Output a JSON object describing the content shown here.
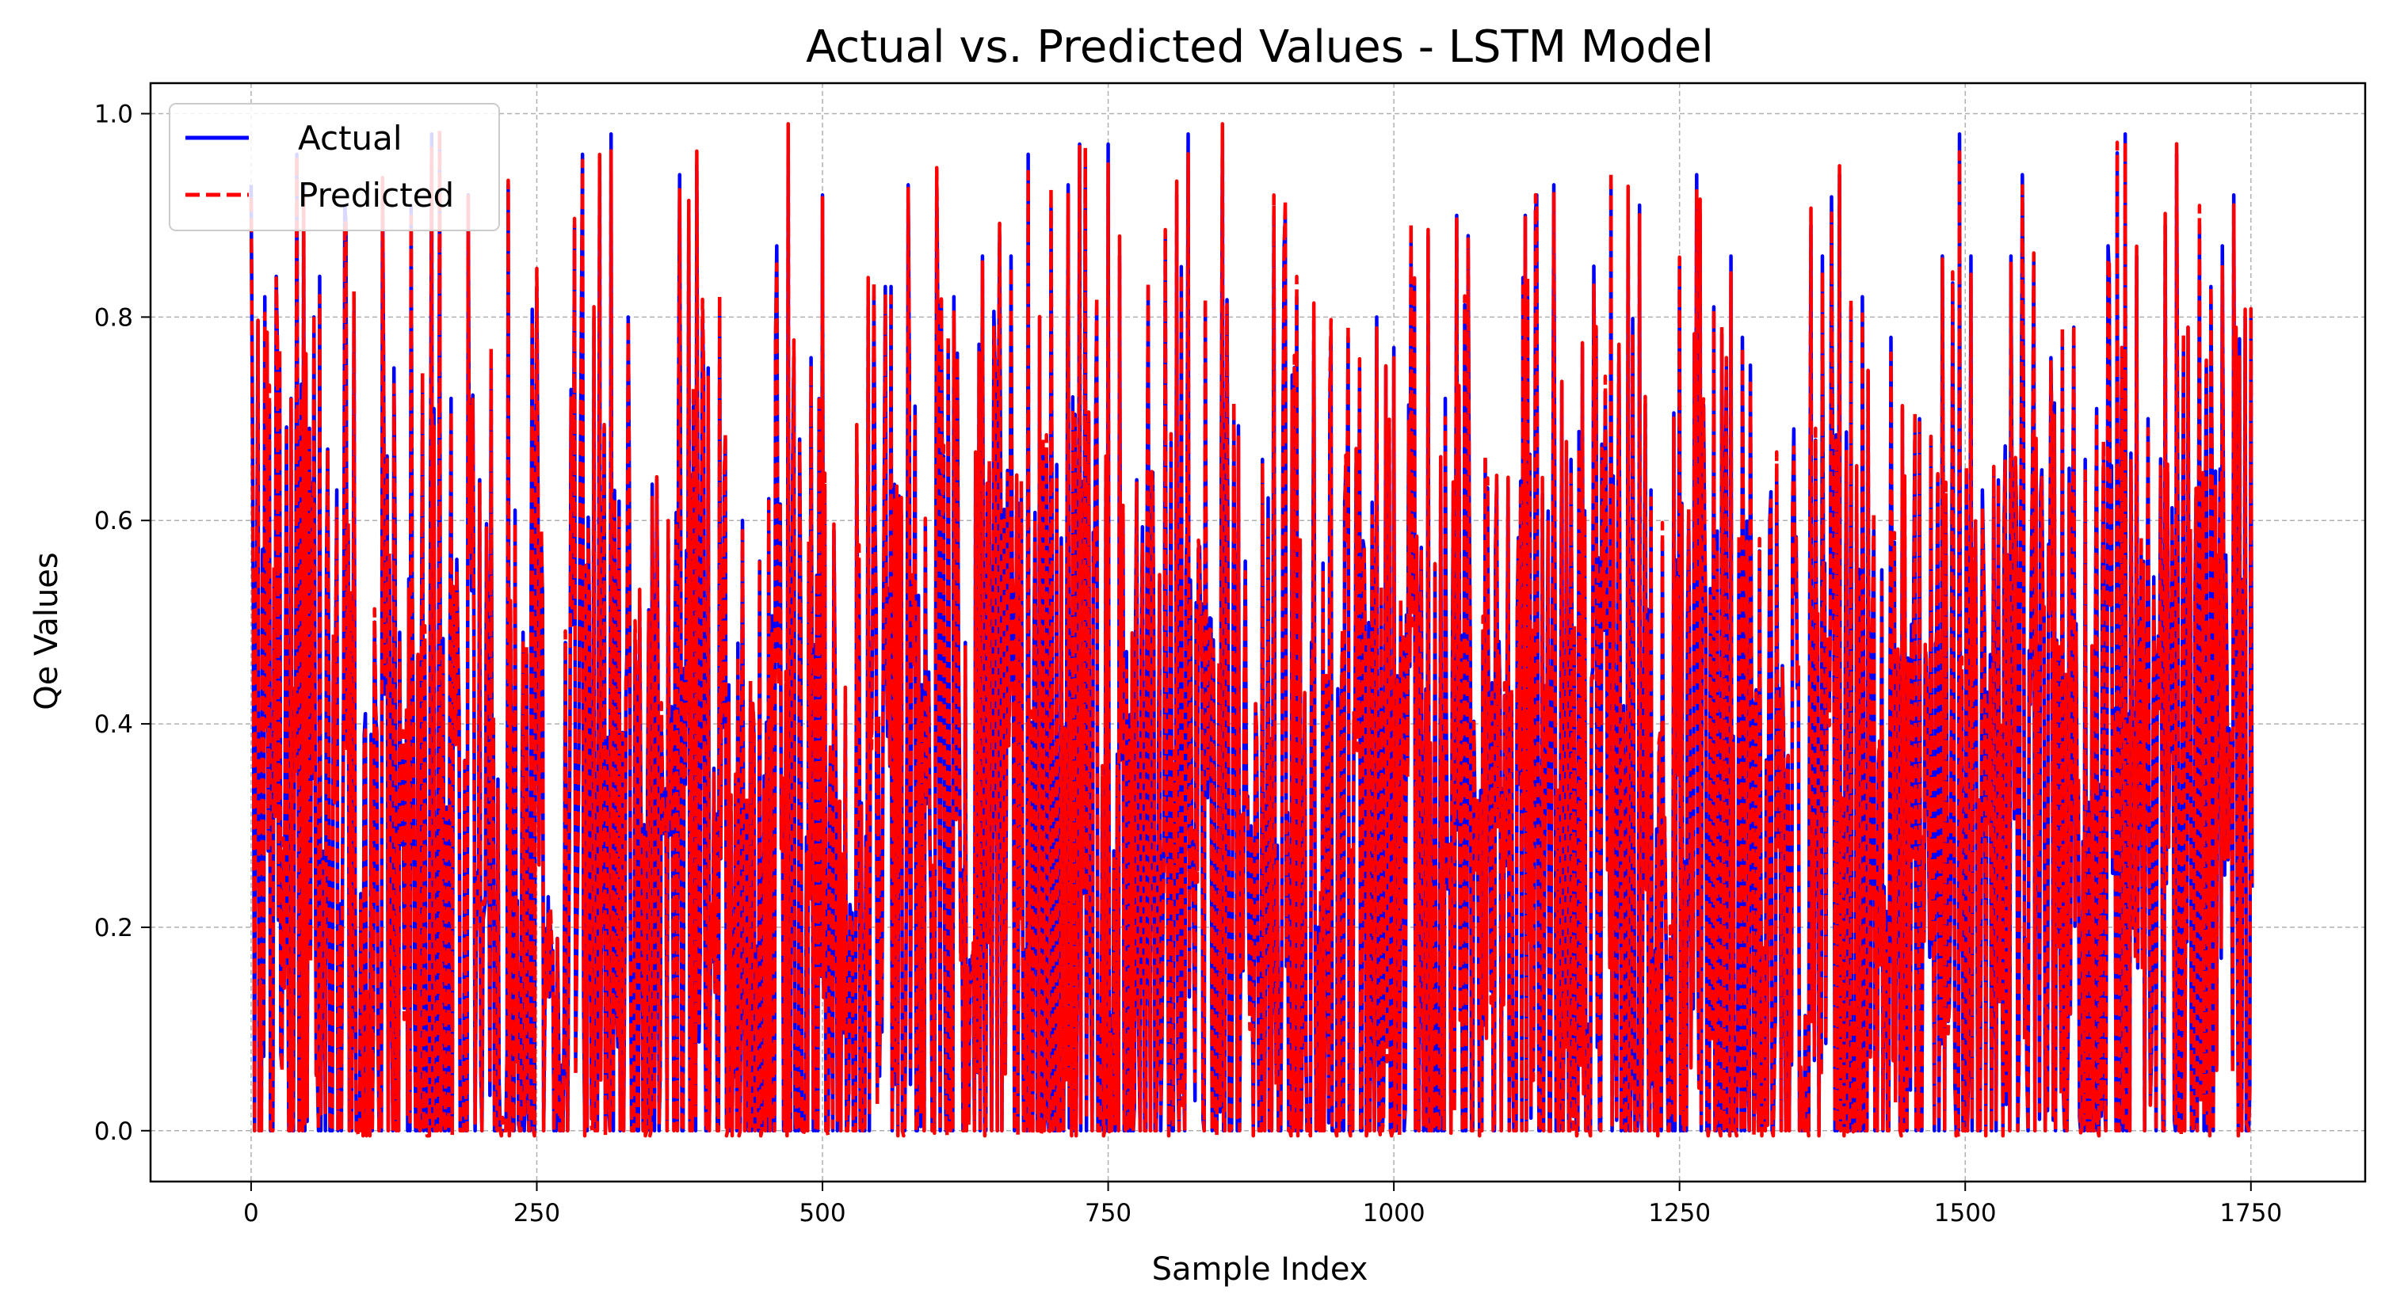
{
  "chart_data": {
    "type": "line",
    "title": "Actual vs. Predicted Values - LSTM Model",
    "xlabel": "Sample Index",
    "ylabel": "Qe Values",
    "xlim": [
      -88,
      1850
    ],
    "ylim": [
      -0.05,
      1.03
    ],
    "xticks": [
      0,
      250,
      500,
      750,
      1000,
      1250,
      1500,
      1750
    ],
    "yticks": [
      0.0,
      0.2,
      0.4,
      0.6,
      0.8,
      1.0
    ],
    "xtick_labels": [
      "0",
      "250",
      "500",
      "750",
      "1000",
      "1250",
      "1500",
      "1750"
    ],
    "ytick_labels": [
      "0.0",
      "0.2",
      "0.4",
      "0.6",
      "0.8",
      "1.0"
    ],
    "grid": true,
    "legend": "top-left",
    "n_samples": 1752,
    "series": [
      {
        "name": "Actual",
        "color": "#0000ff",
        "style": "solid"
      },
      {
        "name": "Predicted",
        "color": "#ff0000",
        "style": "dashed"
      }
    ],
    "peaks": [
      [
        0,
        0.93
      ],
      [
        12,
        0.82
      ],
      [
        22,
        0.84
      ],
      [
        35,
        0.72
      ],
      [
        40,
        0.96
      ],
      [
        55,
        0.8
      ],
      [
        60,
        0.84
      ],
      [
        75,
        0.63
      ],
      [
        82,
        0.91
      ],
      [
        90,
        0.81
      ],
      [
        100,
        0.41
      ],
      [
        108,
        0.5
      ],
      [
        115,
        0.93
      ],
      [
        125,
        0.75
      ],
      [
        130,
        0.49
      ],
      [
        140,
        0.91
      ],
      [
        150,
        0.73
      ],
      [
        158,
        0.98
      ],
      [
        165,
        0.97
      ],
      [
        175,
        0.72
      ],
      [
        190,
        0.92
      ],
      [
        200,
        0.64
      ],
      [
        210,
        0.76
      ],
      [
        225,
        0.93
      ],
      [
        238,
        0.49
      ],
      [
        250,
        0.83
      ],
      [
        260,
        0.23
      ],
      [
        275,
        0.48
      ],
      [
        283,
        0.89
      ],
      [
        290,
        0.96
      ],
      [
        300,
        0.8
      ],
      [
        305,
        0.95
      ],
      [
        315,
        0.98
      ],
      [
        330,
        0.8
      ],
      [
        340,
        0.52
      ],
      [
        355,
        0.64
      ],
      [
        365,
        0.58
      ],
      [
        375,
        0.94
      ],
      [
        390,
        0.95
      ],
      [
        400,
        0.75
      ],
      [
        410,
        0.81
      ],
      [
        415,
        0.68
      ],
      [
        430,
        0.6
      ],
      [
        445,
        0.56
      ],
      [
        460,
        0.87
      ],
      [
        470,
        0.98
      ],
      [
        480,
        0.68
      ],
      [
        490,
        0.76
      ],
      [
        500,
        0.92
      ],
      [
        510,
        0.59
      ],
      [
        520,
        0.42
      ],
      [
        530,
        0.68
      ],
      [
        540,
        0.82
      ],
      [
        545,
        0.82
      ],
      [
        555,
        0.83
      ],
      [
        560,
        0.83
      ],
      [
        575,
        0.93
      ],
      [
        590,
        0.6
      ],
      [
        600,
        0.93
      ],
      [
        615,
        0.82
      ],
      [
        625,
        0.48
      ],
      [
        640,
        0.86
      ],
      [
        655,
        0.88
      ],
      [
        665,
        0.86
      ],
      [
        680,
        0.96
      ],
      [
        690,
        0.8
      ],
      [
        700,
        0.91
      ],
      [
        715,
        0.93
      ],
      [
        725,
        0.97
      ],
      [
        730,
        0.95
      ],
      [
        740,
        0.81
      ],
      [
        750,
        0.97
      ],
      [
        760,
        0.86
      ],
      [
        775,
        0.64
      ],
      [
        785,
        0.83
      ],
      [
        800,
        0.88
      ],
      [
        810,
        0.92
      ],
      [
        820,
        0.98
      ],
      [
        835,
        0.81
      ],
      [
        850,
        0.98
      ],
      [
        860,
        0.7
      ],
      [
        870,
        0.56
      ],
      [
        885,
        0.66
      ],
      [
        895,
        0.9
      ],
      [
        905,
        0.9
      ],
      [
        915,
        0.82
      ],
      [
        930,
        0.8
      ],
      [
        945,
        0.78
      ],
      [
        960,
        0.78
      ],
      [
        970,
        0.75
      ],
      [
        985,
        0.8
      ],
      [
        1000,
        0.77
      ],
      [
        1015,
        0.88
      ],
      [
        1030,
        0.88
      ],
      [
        1045,
        0.72
      ],
      [
        1055,
        0.9
      ],
      [
        1065,
        0.88
      ],
      [
        1080,
        0.66
      ],
      [
        1090,
        0.64
      ],
      [
        1100,
        0.64
      ],
      [
        1115,
        0.9
      ],
      [
        1125,
        0.92
      ],
      [
        1140,
        0.93
      ],
      [
        1155,
        0.66
      ],
      [
        1165,
        0.77
      ],
      [
        1175,
        0.85
      ],
      [
        1190,
        0.93
      ],
      [
        1205,
        0.91
      ],
      [
        1215,
        0.91
      ],
      [
        1225,
        0.63
      ],
      [
        1235,
        0.58
      ],
      [
        1250,
        0.85
      ],
      [
        1265,
        0.94
      ],
      [
        1280,
        0.81
      ],
      [
        1295,
        0.86
      ],
      [
        1305,
        0.78
      ],
      [
        1320,
        0.57
      ],
      [
        1335,
        0.65
      ],
      [
        1350,
        0.69
      ],
      [
        1365,
        0.89
      ],
      [
        1375,
        0.86
      ],
      [
        1390,
        0.94
      ],
      [
        1400,
        0.81
      ],
      [
        1410,
        0.82
      ],
      [
        1420,
        0.59
      ],
      [
        1435,
        0.78
      ],
      [
        1445,
        0.71
      ],
      [
        1460,
        0.7
      ],
      [
        1470,
        0.68
      ],
      [
        1480,
        0.86
      ],
      [
        1495,
        0.98
      ],
      [
        1505,
        0.86
      ],
      [
        1515,
        0.63
      ],
      [
        1525,
        0.65
      ],
      [
        1540,
        0.86
      ],
      [
        1550,
        0.94
      ],
      [
        1560,
        0.86
      ],
      [
        1575,
        0.76
      ],
      [
        1585,
        0.78
      ],
      [
        1595,
        0.79
      ],
      [
        1605,
        0.66
      ],
      [
        1615,
        0.71
      ],
      [
        1625,
        0.87
      ],
      [
        1640,
        0.98
      ],
      [
        1650,
        0.86
      ],
      [
        1660,
        0.7
      ],
      [
        1675,
        0.89
      ],
      [
        1685,
        0.96
      ],
      [
        1695,
        0.79
      ],
      [
        1705,
        0.89
      ],
      [
        1715,
        0.83
      ],
      [
        1725,
        0.87
      ],
      [
        1735,
        0.92
      ],
      [
        1745,
        0.8
      ],
      [
        1750,
        0.8
      ]
    ]
  }
}
